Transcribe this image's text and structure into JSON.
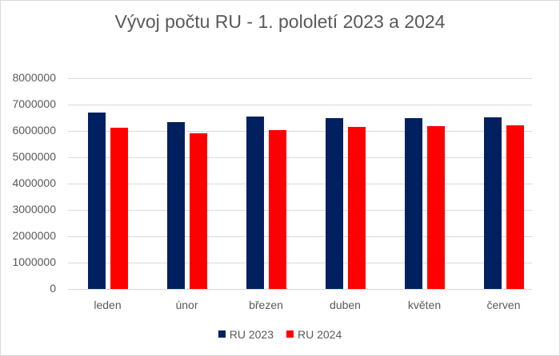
{
  "chart_data": {
    "type": "bar",
    "title": "Vývoj počtu RU - 1. pololetí 2023 a 2024",
    "xlabel": "",
    "ylabel": "",
    "categories": [
      "leden",
      "únor",
      "březen",
      "duben",
      "květen",
      "červen"
    ],
    "series": [
      {
        "name": "RU 2023",
        "color": "#002060",
        "values": [
          6700000,
          6330000,
          6550000,
          6480000,
          6480000,
          6520000
        ]
      },
      {
        "name": "RU 2024",
        "color": "#ff0000",
        "values": [
          6120000,
          5910000,
          6030000,
          6150000,
          6180000,
          6200000
        ]
      }
    ],
    "ylim": [
      0,
      8000000
    ],
    "yticks": [
      "0",
      "1000000",
      "2000000",
      "3000000",
      "4000000",
      "5000000",
      "6000000",
      "7000000",
      "8000000"
    ],
    "grid": true,
    "legend_position": "bottom"
  }
}
